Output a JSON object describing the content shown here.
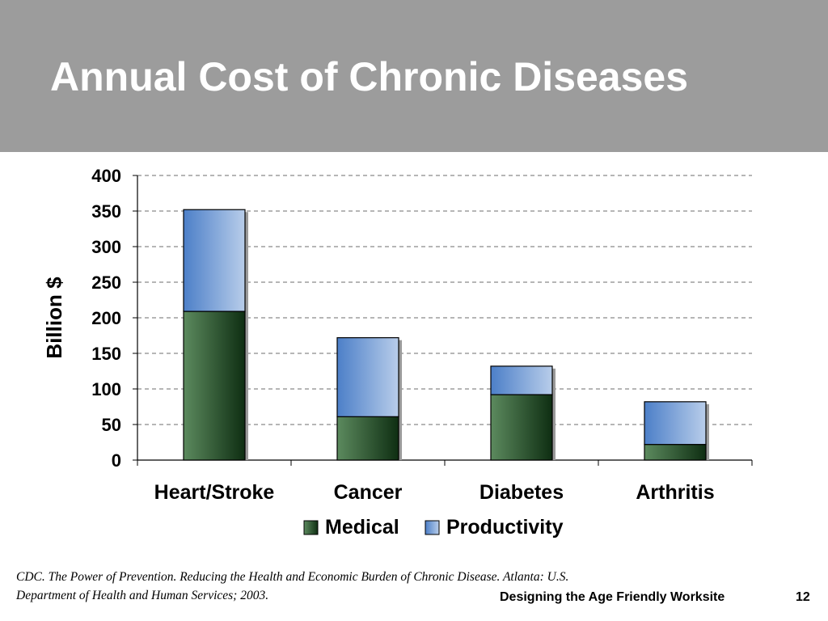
{
  "slide": {
    "title": "Annual Cost of Chronic Diseases",
    "citation": "CDC. The Power of Prevention. Reducing the Health and Economic Burden of Chronic Disease. Atlanta: U.S. Department of Health and Human Services; 2003.",
    "footer": "Designing the Age Friendly Worksite",
    "page_number": "12",
    "header_color": "#9c9c9c"
  },
  "chart_data": {
    "type": "bar",
    "stacked": true,
    "title": "",
    "xlabel": "",
    "ylabel": "Billion $",
    "categories": [
      "Heart/Stroke",
      "Cancer",
      "Diabetes",
      "Arthritis"
    ],
    "series": [
      {
        "name": "Medical",
        "values": [
          209,
          61,
          92,
          22
        ],
        "color": "#2e5a33"
      },
      {
        "name": "Productivity",
        "values": [
          143,
          111,
          40,
          60
        ],
        "color": "#6f9ad3"
      }
    ],
    "ylim": [
      0,
      400
    ],
    "yticks": [
      0,
      50,
      100,
      150,
      200,
      250,
      300,
      350,
      400
    ],
    "grid": true,
    "legend_position": "bottom"
  }
}
